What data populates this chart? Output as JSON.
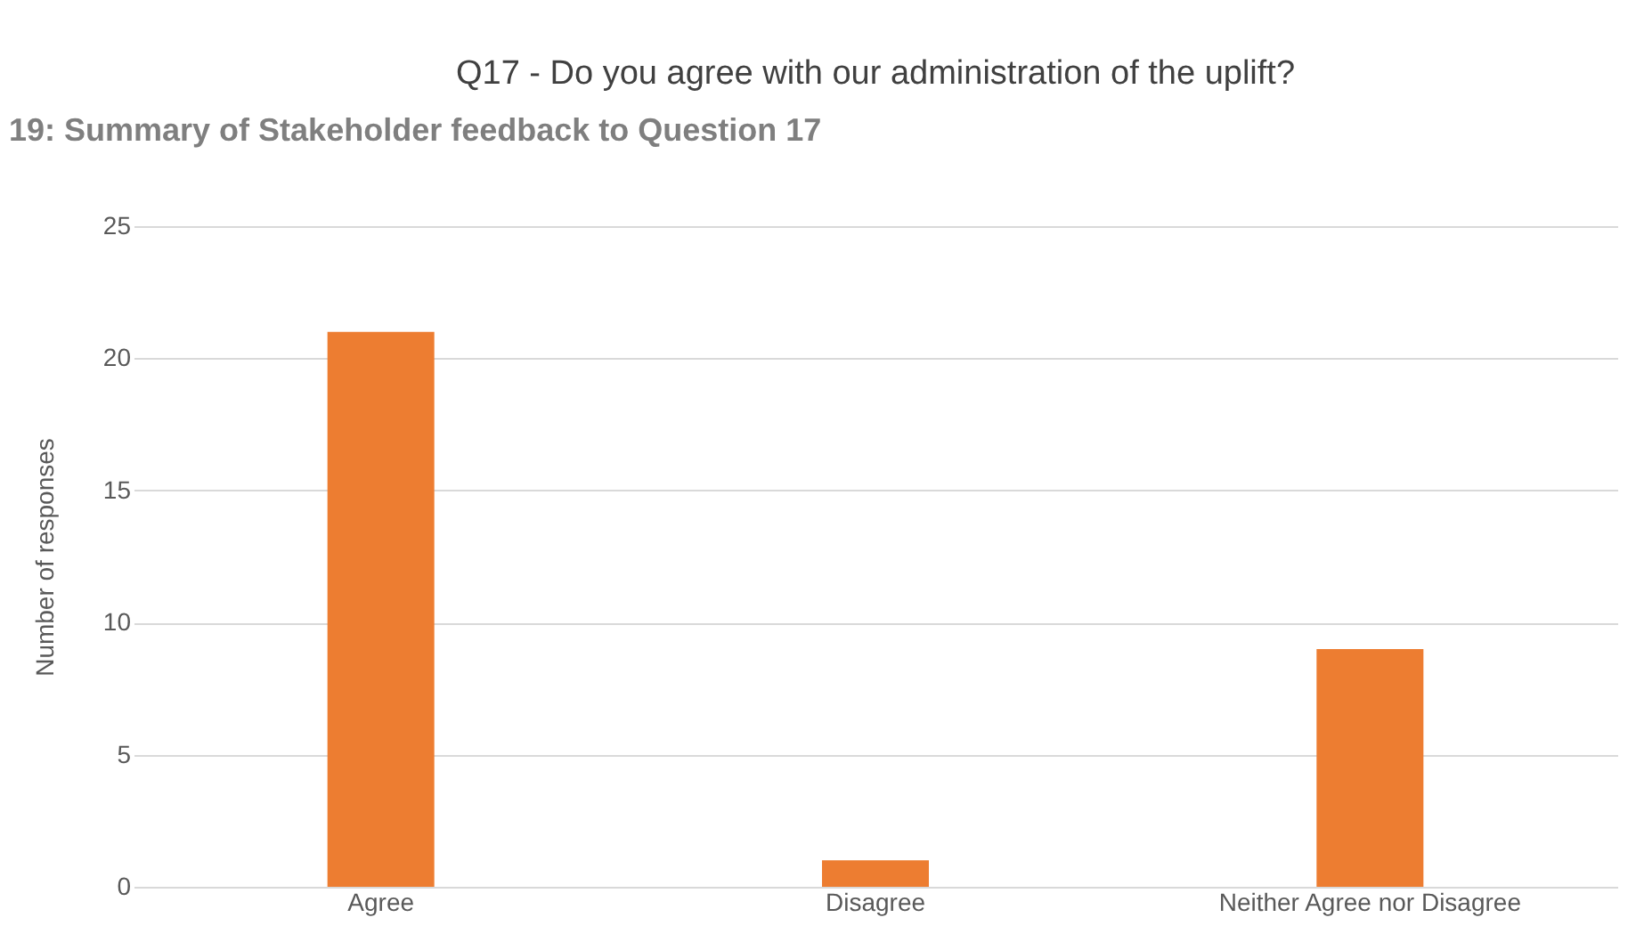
{
  "chart_data": {
    "type": "bar",
    "title": "Q17 - Do you agree with our administration of the uplift?",
    "annotations": [
      "19: Summary of Stakeholder feedback to Question 17"
    ],
    "ylabel": "Number of responses",
    "categories": [
      "Agree",
      "Disagree",
      "Neither Agree nor Disagree"
    ],
    "values": [
      21,
      1,
      9
    ],
    "color": "#ed7d31",
    "ylim": [
      0,
      25
    ],
    "yticks": [
      0,
      5,
      10,
      15,
      20,
      25
    ],
    "grid": "y"
  }
}
